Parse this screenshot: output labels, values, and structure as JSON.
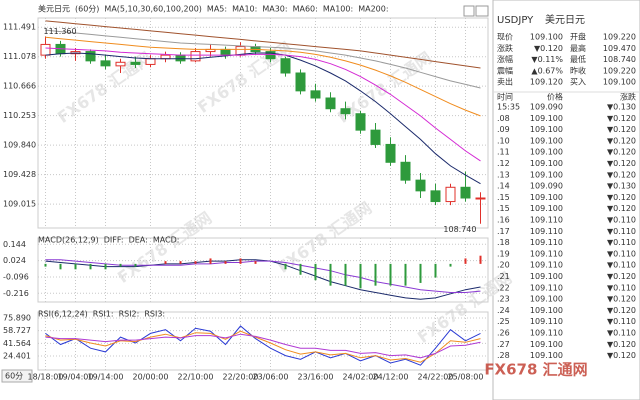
{
  "chart_data": [
    {
      "type": "candlestick",
      "title": "美元日元",
      "period": "(60分)",
      "ma_header": "MA(5,10,30,60,100,200)",
      "ma5_label": "MA5:",
      "categories": [
        "18/18:00",
        null,
        "19/04:00",
        null,
        "19/14:00",
        null,
        null,
        "20/00:00",
        null,
        null,
        "22/10:00",
        null,
        null,
        "22/20:00",
        null,
        "23/06:00",
        null,
        null,
        "23/16:00",
        null,
        null,
        "24/02:00",
        null,
        "24/12:00",
        null,
        null,
        "24/22:00",
        null,
        "25/08:00",
        null
      ],
      "open": [
        111.1,
        111.25,
        111.12,
        111.15,
        111.02,
        110.95,
        111.0,
        110.97,
        111.05,
        111.1,
        111.02,
        111.15,
        111.18,
        111.1,
        111.22,
        111.15,
        111.05,
        110.85,
        110.6,
        110.5,
        110.35,
        110.28,
        110.05,
        109.85,
        109.6,
        109.35,
        109.2,
        109.05,
        109.25,
        109.1
      ],
      "high": [
        111.36,
        111.3,
        111.2,
        111.18,
        111.1,
        111.05,
        111.08,
        111.1,
        111.15,
        111.14,
        111.2,
        111.25,
        111.22,
        111.28,
        111.26,
        111.2,
        111.08,
        110.9,
        110.7,
        110.58,
        110.45,
        110.32,
        110.15,
        109.95,
        109.7,
        109.45,
        109.3,
        109.3,
        109.47,
        109.18
      ],
      "low": [
        111.05,
        111.08,
        111.02,
        110.98,
        110.9,
        110.85,
        110.92,
        110.93,
        111.0,
        110.98,
        111.0,
        111.08,
        111.05,
        111.08,
        111.1,
        111.0,
        110.8,
        110.55,
        110.45,
        110.3,
        110.2,
        110.0,
        109.8,
        109.55,
        109.3,
        109.1,
        109.0,
        109.0,
        109.05,
        108.74
      ],
      "close": [
        111.25,
        111.12,
        111.15,
        111.02,
        110.95,
        111.0,
        110.97,
        111.05,
        111.1,
        111.02,
        111.15,
        111.18,
        111.1,
        111.22,
        111.15,
        111.05,
        110.85,
        110.6,
        110.5,
        110.35,
        110.28,
        110.05,
        109.85,
        109.6,
        109.35,
        109.2,
        109.05,
        109.25,
        109.1,
        109.1
      ],
      "up_color": "#e0302a",
      "down_color": "#2e9a3c",
      "annotations": [
        "111.360",
        "108.740"
      ],
      "series": [
        {
          "name": "MA10:",
          "color": "#1b2a6b",
          "values": [
            111.1,
            111.12,
            111.13,
            111.12,
            111.1,
            111.08,
            111.06,
            111.05,
            111.05,
            111.05,
            111.05,
            111.07,
            111.09,
            111.11,
            111.13,
            111.13,
            111.1,
            111.03,
            110.95,
            110.85,
            110.74,
            110.6,
            110.45,
            110.28,
            110.1,
            109.92,
            109.72,
            109.55,
            109.42,
            109.3
          ]
        },
        {
          "name": "MA30:",
          "color": "#d42ad4",
          "values": [
            111.2,
            111.19,
            111.18,
            111.17,
            111.16,
            111.14,
            111.13,
            111.12,
            111.11,
            111.1,
            111.1,
            111.1,
            111.1,
            111.1,
            111.11,
            111.11,
            111.1,
            111.08,
            111.04,
            110.98,
            110.9,
            110.8,
            110.68,
            110.55,
            110.4,
            110.25,
            110.08,
            109.92,
            109.76,
            109.62
          ]
        },
        {
          "name": "MA60:",
          "color": "#f08c1e",
          "values": [
            111.35,
            111.33,
            111.31,
            111.29,
            111.27,
            111.25,
            111.23,
            111.21,
            111.2,
            111.19,
            111.18,
            111.18,
            111.18,
            111.18,
            111.18,
            111.17,
            111.16,
            111.14,
            111.11,
            111.07,
            111.02,
            110.96,
            110.89,
            110.81,
            110.72,
            110.62,
            110.52,
            110.42,
            110.33,
            110.25
          ]
        },
        {
          "name": "MA100:",
          "color": "#9a9a9a",
          "values": [
            111.45,
            111.43,
            111.41,
            111.39,
            111.37,
            111.35,
            111.33,
            111.31,
            111.29,
            111.27,
            111.26,
            111.25,
            111.24,
            111.23,
            111.22,
            111.21,
            111.2,
            111.18,
            111.16,
            111.13,
            111.1,
            111.06,
            111.02,
            110.97,
            110.92,
            110.86,
            110.8,
            110.74,
            110.69,
            110.64
          ]
        },
        {
          "name": "MA200:",
          "color": "#a0522d",
          "values": [
            111.58,
            111.56,
            111.54,
            111.52,
            111.5,
            111.48,
            111.46,
            111.44,
            111.42,
            111.4,
            111.38,
            111.36,
            111.34,
            111.32,
            111.3,
            111.28,
            111.26,
            111.24,
            111.22,
            111.2,
            111.18,
            111.16,
            111.13,
            111.1,
            111.07,
            111.04,
            111.01,
            110.98,
            110.95,
            110.92
          ]
        }
      ],
      "ylim": [
        108.68,
        111.62
      ],
      "yticks": [
        111.491,
        111.078,
        110.666,
        110.253,
        {
          "value": 109.84,
          "label": "109.840"
        },
        109.428,
        109.015
      ],
      "grid": true
    },
    {
      "type": "macd",
      "title": "MACD(26,12,9)",
      "series": [
        {
          "name": "DIFF:",
          "color": "#1b2a6b",
          "values": [
            0.02,
            0.01,
            0.0,
            -0.01,
            -0.02,
            -0.02,
            -0.02,
            -0.01,
            0.0,
            0.0,
            0.01,
            0.02,
            0.02,
            0.03,
            0.03,
            0.02,
            -0.01,
            -0.05,
            -0.09,
            -0.13,
            -0.16,
            -0.19,
            -0.21,
            -0.23,
            -0.25,
            -0.26,
            -0.25,
            -0.22,
            -0.19,
            -0.17
          ]
        },
        {
          "name": "DEA:",
          "color": "#8a3ad4",
          "values": [
            0.03,
            0.03,
            0.02,
            0.01,
            0.0,
            -0.01,
            -0.01,
            -0.01,
            -0.01,
            -0.01,
            0.0,
            0.0,
            0.01,
            0.01,
            0.02,
            0.02,
            0.01,
            -0.01,
            -0.03,
            -0.05,
            -0.08,
            -0.1,
            -0.13,
            -0.15,
            -0.17,
            -0.19,
            -0.2,
            -0.21,
            -0.21,
            -0.2
          ]
        },
        {
          "name": "MACD:",
          "color": "#d42ad4",
          "bars": true,
          "values": [
            -0.02,
            -0.04,
            -0.04,
            -0.04,
            -0.04,
            -0.02,
            -0.02,
            0.0,
            0.02,
            0.02,
            0.02,
            0.04,
            0.02,
            0.04,
            0.02,
            0.0,
            -0.04,
            -0.08,
            -0.12,
            -0.16,
            -0.16,
            -0.18,
            -0.16,
            -0.16,
            -0.16,
            -0.14,
            -0.1,
            -0.02,
            0.04,
            0.06
          ]
        }
      ],
      "ylim": [
        -0.28,
        0.19
      ],
      "yticks": [
        0.144,
        0.024,
        -0.096,
        -0.216
      ],
      "grid": true
    },
    {
      "type": "rsi",
      "title": "RSI(6,12,24)",
      "series": [
        {
          "name": "RSI1:",
          "color": "#2a3ad4",
          "values": [
            55,
            40,
            48,
            35,
            30,
            50,
            42,
            55,
            60,
            45,
            62,
            58,
            40,
            65,
            48,
            35,
            25,
            20,
            30,
            22,
            28,
            18,
            25,
            15,
            20,
            12,
            35,
            60,
            45,
            55
          ]
        },
        {
          "name": "RSI2:",
          "color": "#f08c1e",
          "values": [
            52,
            46,
            47,
            42,
            38,
            45,
            44,
            50,
            54,
            49,
            56,
            55,
            47,
            58,
            50,
            42,
            33,
            27,
            30,
            26,
            28,
            22,
            25,
            19,
            21,
            16,
            28,
            45,
            43,
            48
          ]
        },
        {
          "name": "RSI3:",
          "color": "#b03ad4",
          "values": [
            50,
            48,
            48,
            46,
            44,
            46,
            46,
            48,
            50,
            49,
            52,
            52,
            49,
            54,
            51,
            46,
            40,
            35,
            35,
            32,
            32,
            28,
            29,
            25,
            26,
            22,
            28,
            38,
            39,
            43
          ]
        }
      ],
      "ylim": [
        5.5,
        84
      ],
      "yticks": [
        {
          "value": 75.89,
          "label": "75.890"
        },
        58.727,
        41.564,
        24.401
      ],
      "grid": true
    }
  ],
  "period_selector": "60分",
  "watermark": "FX678 汇通网",
  "panel": {
    "symbol": "USDJPY",
    "name": "美元日元",
    "quote": [
      [
        "现价",
        "109.100",
        "开盘",
        "109.220"
      ],
      [
        "涨跌",
        "▼0.120",
        "最高",
        "109.470"
      ],
      [
        "涨幅",
        "▼0.11%",
        "最低",
        "108.740"
      ],
      [
        "震幅",
        "▲0.67%",
        "昨收",
        "109.220"
      ],
      [
        "卖出",
        "109.120",
        "买入",
        "109.100"
      ]
    ],
    "ticks_header": [
      "时间",
      "价格",
      "涨跌"
    ],
    "ticks": [
      [
        "15:35",
        "109.090",
        "▼0.130"
      ],
      [
        ".08",
        "109.100",
        "▼0.120"
      ],
      [
        ".09",
        "109.100",
        "▼0.120"
      ],
      [
        ".10",
        "109.100",
        "▼0.120"
      ],
      [
        ".11",
        "109.100",
        "▼0.120"
      ],
      [
        ".12",
        "109.100",
        "▼0.120"
      ],
      [
        ".13",
        "109.100",
        "▼0.120"
      ],
      [
        ".14",
        "109.090",
        "▼0.130"
      ],
      [
        ".15",
        "109.100",
        "▼0.120"
      ],
      [
        ".15",
        "109.100",
        "▼0.120"
      ],
      [
        ".16",
        "109.110",
        "▼0.110"
      ],
      [
        ".17",
        "109.110",
        "▼0.110"
      ],
      [
        ".18",
        "109.110",
        "▼0.110"
      ],
      [
        ".19",
        "109.110",
        "▼0.110"
      ],
      [
        ".20",
        "109.110",
        "▼0.110"
      ],
      [
        ".21",
        "109.100",
        "▼0.120"
      ],
      [
        ".22",
        "109.110",
        "▼0.110"
      ],
      [
        ".23",
        "109.100",
        "▼0.120"
      ],
      [
        ".24",
        "109.100",
        "▼0.120"
      ],
      [
        ".25",
        "109.110",
        "▼0.110"
      ],
      [
        ".26",
        "109.110",
        "▼0.110"
      ],
      [
        ".27",
        "109.100",
        "▼0.120"
      ],
      [
        ".28",
        "109.100",
        "▼0.120"
      ]
    ]
  }
}
